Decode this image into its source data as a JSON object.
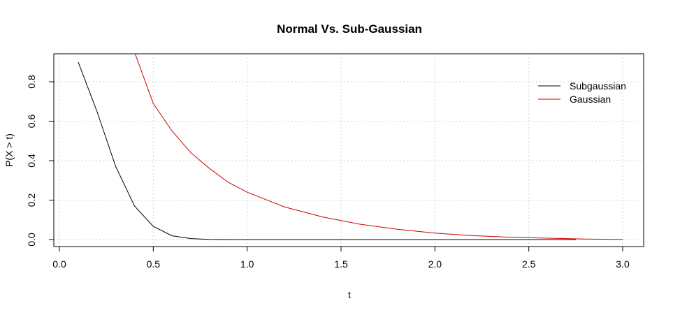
{
  "chart_data": {
    "type": "line",
    "title": "Normal Vs. Sub-Gaussian",
    "xlabel": "t",
    "ylabel": "P(X > t)",
    "xlim": [
      0.0,
      3.0
    ],
    "ylim": [
      0.0,
      0.9
    ],
    "x_ticks": [
      "0.0",
      "0.5",
      "1.0",
      "1.5",
      "2.0",
      "2.5",
      "3.0"
    ],
    "y_ticks": [
      "0.0",
      "0.2",
      "0.4",
      "0.6",
      "0.8"
    ],
    "grid": true,
    "legend_position": "top-right",
    "series": [
      {
        "name": "Subgaussian",
        "color": "#000000",
        "x": [
          0.1,
          0.2,
          0.3,
          0.4,
          0.5,
          0.6,
          0.7,
          0.8,
          0.9,
          1.0,
          1.25,
          1.5,
          1.75,
          2.0,
          2.25,
          2.5,
          2.75
        ],
        "y": [
          0.9,
          0.65,
          0.37,
          0.17,
          0.067,
          0.019,
          0.005,
          0.001,
          0.0,
          0.0,
          0.0,
          0.0,
          0.0,
          0.0,
          0.0,
          0.0,
          0.0
        ]
      },
      {
        "name": "Gaussian",
        "color": "#cc0000",
        "x": [
          0.4,
          0.5,
          0.6,
          0.7,
          0.8,
          0.9,
          1.0,
          1.2,
          1.4,
          1.6,
          1.8,
          2.0,
          2.2,
          2.4,
          2.6,
          2.8,
          3.0
        ],
        "y": [
          0.95,
          0.69,
          0.55,
          0.44,
          0.36,
          0.29,
          0.24,
          0.165,
          0.115,
          0.078,
          0.052,
          0.033,
          0.02,
          0.012,
          0.007,
          0.003,
          0.001
        ]
      }
    ]
  }
}
